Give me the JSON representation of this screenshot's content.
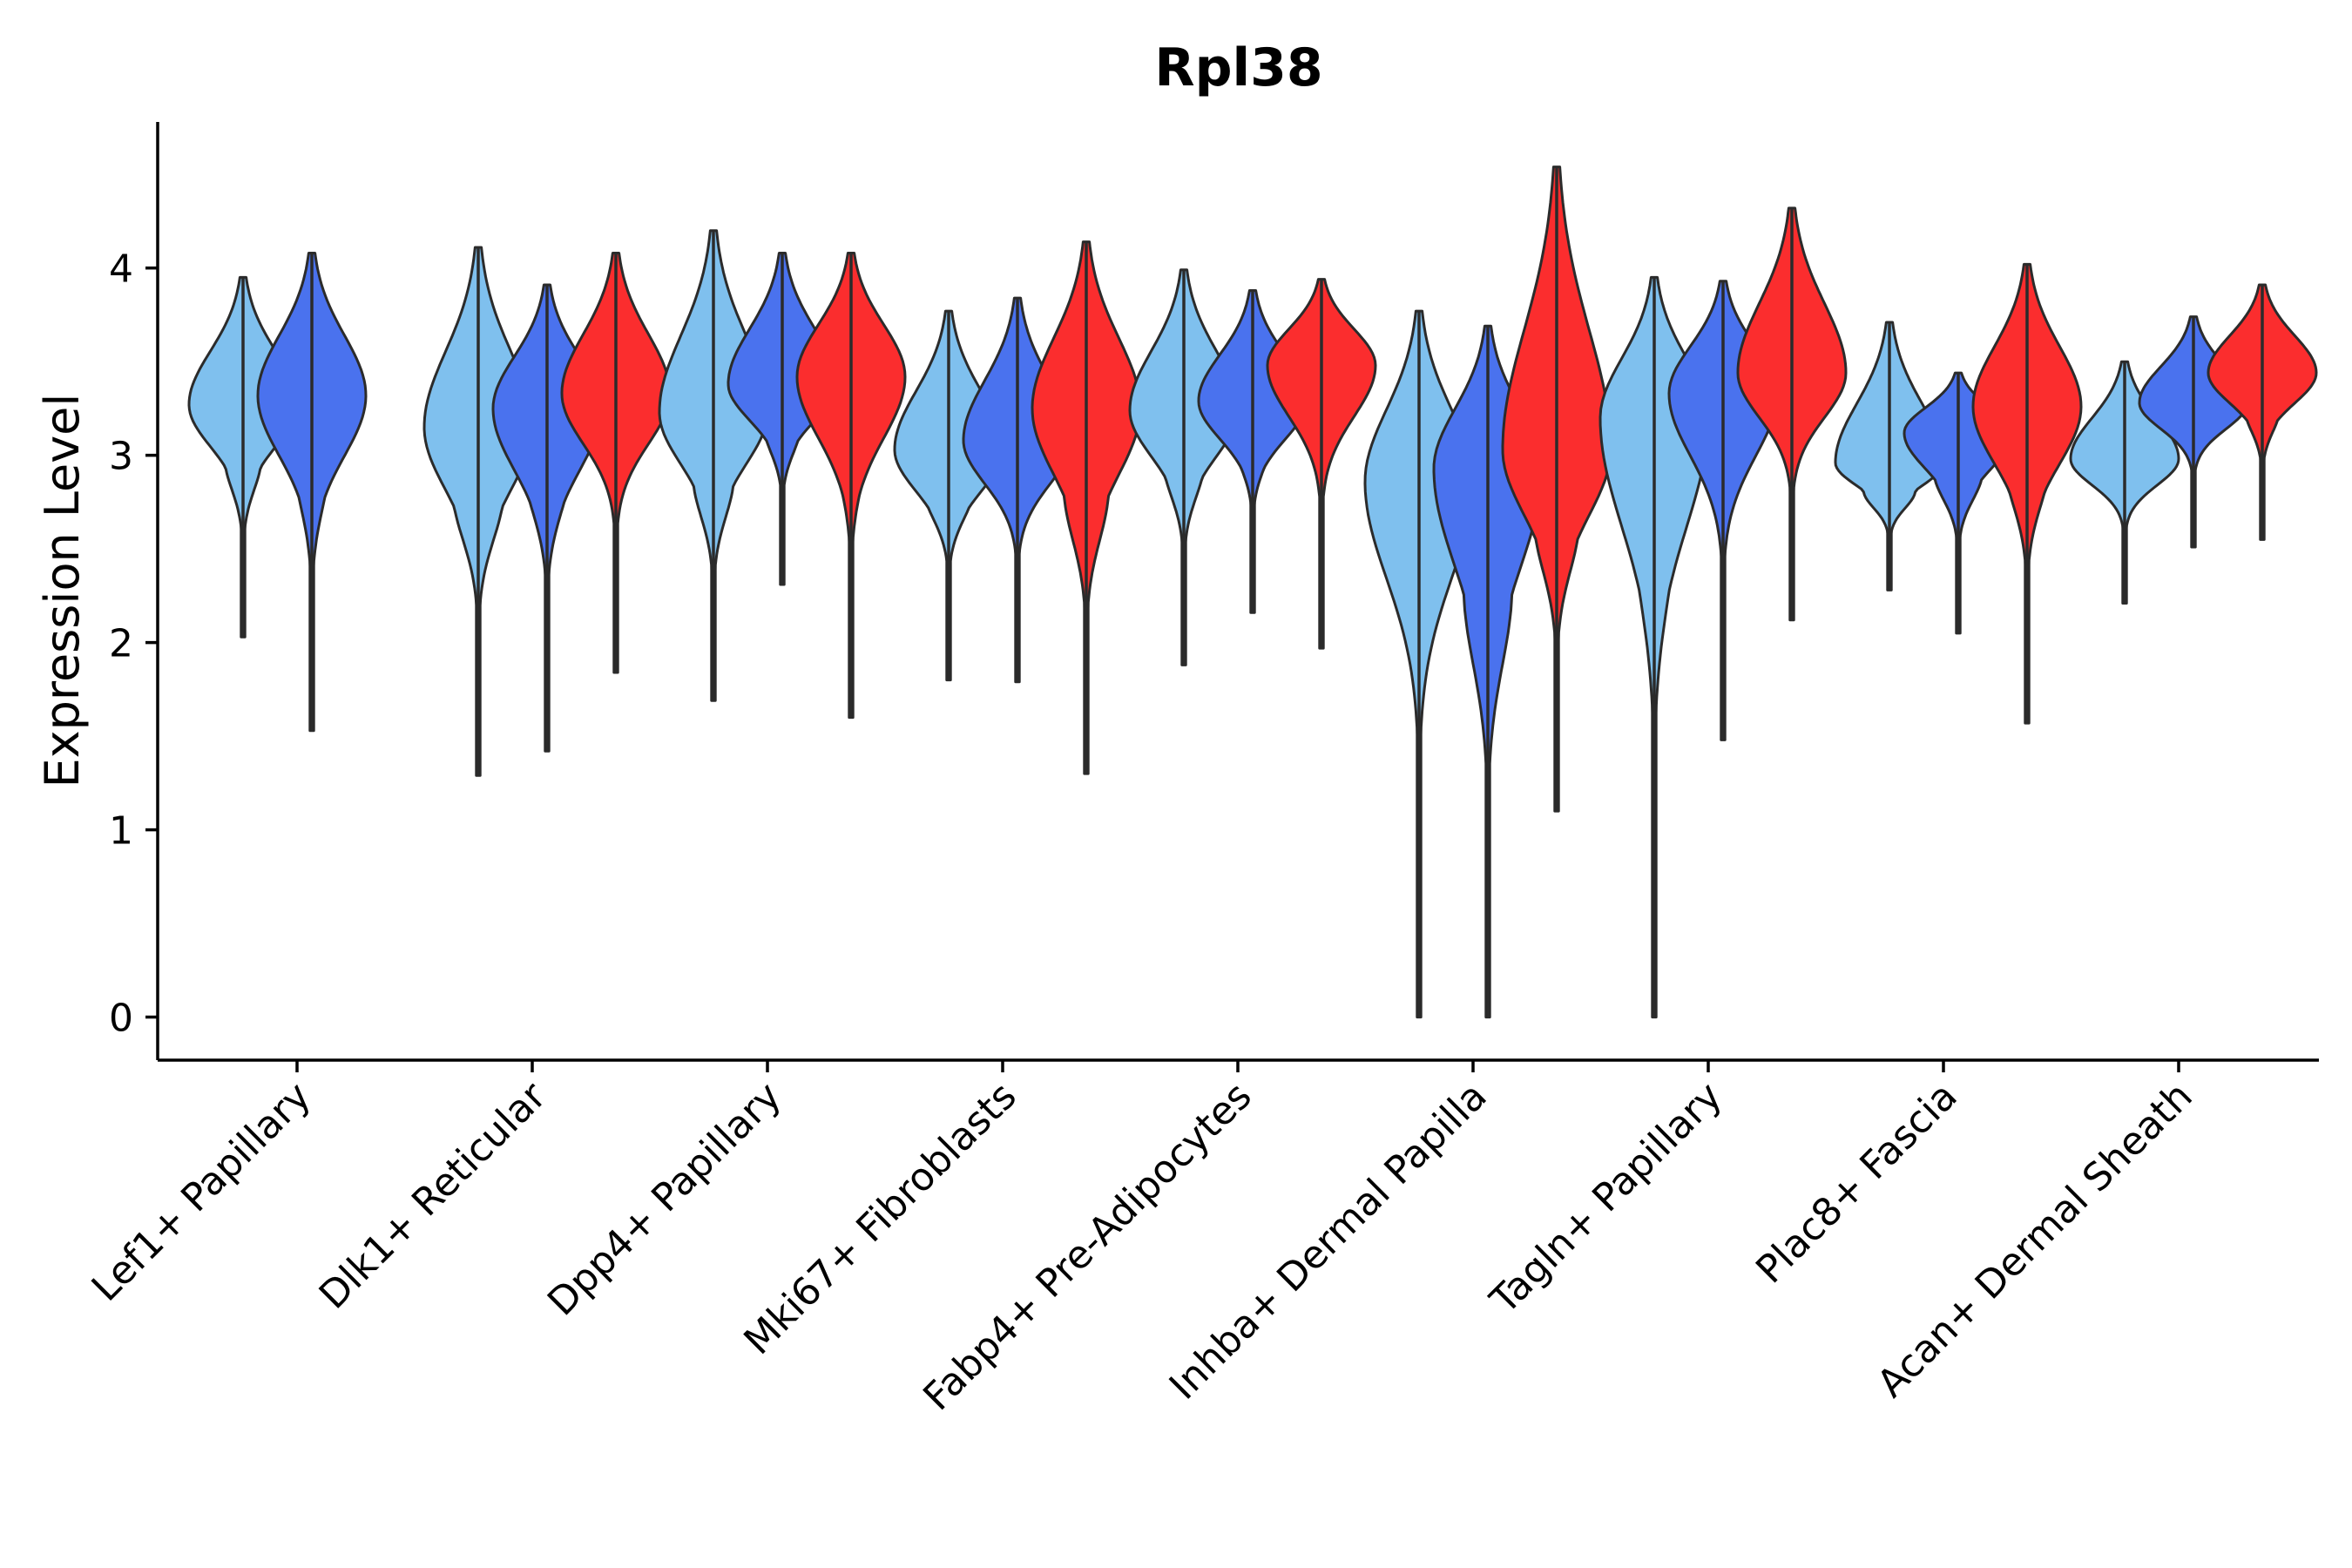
{
  "chart_data": {
    "type": "violin",
    "title": "Rpl38",
    "xlabel": "",
    "ylabel": "Expression Level",
    "ylim": [
      -0.23,
      4.78
    ],
    "yticks": [
      0,
      1,
      2,
      3,
      4
    ],
    "grid": false,
    "legend": "none",
    "groups": [
      "light",
      "mid",
      "dark"
    ],
    "group_colors": {
      "light": "#7fc0ee",
      "mid": "#4a72ee",
      "dark": "#fb2d2e"
    },
    "categories": [
      "Lef1+ Papillary",
      "Dlk1+ Reticular",
      "Dpp4+ Papillary",
      "Mki67+ Fibroblasts",
      "Fabp4+ Pre-Adipocytes",
      "Inhba+ Dermal Papilla",
      "Tagln+ Papillary",
      "Plac8+ Fascia",
      "Acan+ Dermal Sheath"
    ],
    "violins": [
      {
        "category": 0,
        "group": "light",
        "min": 2.03,
        "max": 3.95,
        "median": 3.27
      },
      {
        "category": 0,
        "group": "mid",
        "min": 1.53,
        "max": 4.08,
        "median": 3.32
      },
      {
        "category": 1,
        "group": "light",
        "min": 1.29,
        "max": 4.11,
        "median": 3.15
      },
      {
        "category": 1,
        "group": "mid",
        "min": 1.42,
        "max": 3.91,
        "median": 3.25
      },
      {
        "category": 1,
        "group": "dark",
        "min": 1.84,
        "max": 4.08,
        "median": 3.33
      },
      {
        "category": 2,
        "group": "light",
        "min": 1.69,
        "max": 4.2,
        "median": 3.23
      },
      {
        "category": 2,
        "group": "mid",
        "min": 2.31,
        "max": 4.08,
        "median": 3.38
      },
      {
        "category": 2,
        "group": "dark",
        "min": 1.6,
        "max": 4.08,
        "median": 3.42
      },
      {
        "category": 3,
        "group": "light",
        "min": 1.8,
        "max": 3.77,
        "median": 3.03
      },
      {
        "category": 3,
        "group": "mid",
        "min": 1.79,
        "max": 3.84,
        "median": 3.08
      },
      {
        "category": 3,
        "group": "dark",
        "min": 1.3,
        "max": 4.14,
        "median": 3.25
      },
      {
        "category": 4,
        "group": "light",
        "min": 1.88,
        "max": 3.99,
        "median": 3.24
      },
      {
        "category": 4,
        "group": "mid",
        "min": 2.16,
        "max": 3.88,
        "median": 3.29
      },
      {
        "category": 4,
        "group": "dark",
        "min": 1.97,
        "max": 3.94,
        "median": 3.48
      },
      {
        "category": 5,
        "group": "light",
        "min": 0.0,
        "max": 3.77,
        "median": 2.86
      },
      {
        "category": 5,
        "group": "mid",
        "min": 0.0,
        "max": 3.69,
        "median": 2.93
      },
      {
        "category": 5,
        "group": "dark",
        "min": 1.1,
        "max": 4.54,
        "median": 3.03
      },
      {
        "category": 6,
        "group": "light",
        "min": 0.0,
        "max": 3.95,
        "median": 3.2
      },
      {
        "category": 6,
        "group": "mid",
        "min": 1.48,
        "max": 3.93,
        "median": 3.33
      },
      {
        "category": 6,
        "group": "dark",
        "min": 2.12,
        "max": 4.32,
        "median": 3.44
      },
      {
        "category": 7,
        "group": "light",
        "min": 2.28,
        "max": 3.71,
        "median": 2.96
      },
      {
        "category": 7,
        "group": "mid",
        "min": 2.05,
        "max": 3.44,
        "median": 3.12
      },
      {
        "category": 7,
        "group": "dark",
        "min": 1.57,
        "max": 4.02,
        "median": 3.26
      },
      {
        "category": 8,
        "group": "light",
        "min": 2.21,
        "max": 3.5,
        "median": 2.98
      },
      {
        "category": 8,
        "group": "mid",
        "min": 2.51,
        "max": 3.74,
        "median": 3.28
      },
      {
        "category": 8,
        "group": "dark",
        "min": 2.55,
        "max": 3.91,
        "median": 3.44
      }
    ]
  }
}
